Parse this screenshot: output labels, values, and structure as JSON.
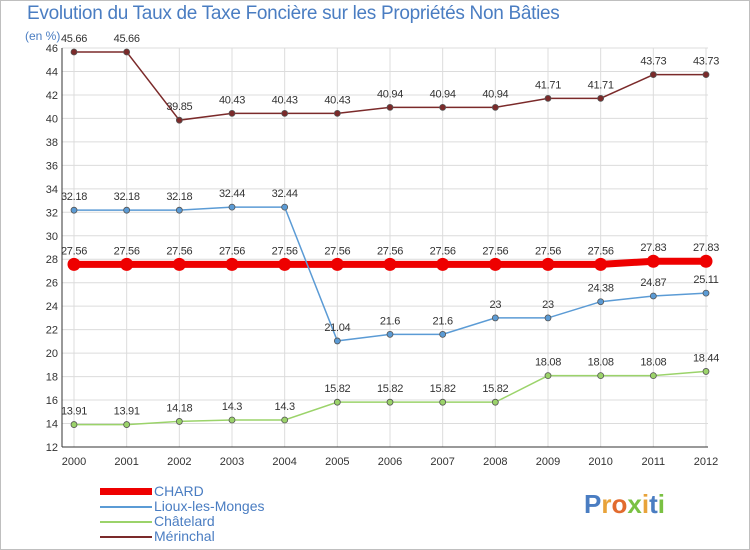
{
  "chart_data": {
    "type": "line",
    "title": "Evolution du Taux de Taxe Foncière sur les Propriétés Non Bâties",
    "ylabel": "(en %)",
    "xlabel": "",
    "x": [
      "2000",
      "2001",
      "2002",
      "2003",
      "2004",
      "2005",
      "2006",
      "2007",
      "2008",
      "2009",
      "2010",
      "2011",
      "2012"
    ],
    "ylim": [
      12,
      46
    ],
    "yticks": [
      12,
      14,
      16,
      18,
      20,
      22,
      24,
      26,
      28,
      30,
      32,
      34,
      36,
      38,
      40,
      42,
      44,
      46
    ],
    "grid": true,
    "legend_position": "bottom-left",
    "series": [
      {
        "name": "CHARD",
        "color": "#ee0000",
        "bold": true,
        "values": [
          27.56,
          27.56,
          27.56,
          27.56,
          27.56,
          27.56,
          27.56,
          27.56,
          27.56,
          27.56,
          27.56,
          27.83,
          27.83
        ],
        "labels": [
          "27.56",
          "27.56",
          "27.56",
          "27.56",
          "27.56",
          "27.56",
          "27.56",
          "27.56",
          "27.56",
          "27.56",
          "27.56",
          "27.83",
          "27.83"
        ]
      },
      {
        "name": "Lioux-les-Monges",
        "color": "#5b9bd5",
        "bold": false,
        "values": [
          32.18,
          32.18,
          32.18,
          32.44,
          32.44,
          21.04,
          21.6,
          21.6,
          23,
          23,
          24.38,
          24.87,
          25.11
        ],
        "labels": [
          "32.18",
          "32.18",
          "32.18",
          "32.44",
          "32.44",
          "21.04",
          "21.6",
          "21.6",
          "23",
          "23",
          "24.38",
          "24.87",
          "25.11"
        ]
      },
      {
        "name": "Châtelard",
        "color": "#9bd36a",
        "bold": false,
        "values": [
          13.91,
          13.91,
          14.18,
          14.3,
          14.3,
          15.82,
          15.82,
          15.82,
          15.82,
          18.08,
          18.08,
          18.08,
          18.44
        ],
        "labels": [
          "13.91",
          "13.91",
          "14.18",
          "14.3",
          "14.3",
          "15.82",
          "15.82",
          "15.82",
          "15.82",
          "18.08",
          "18.08",
          "18.08",
          "18.44"
        ]
      },
      {
        "name": "Mérinchal",
        "color": "#7b2a2a",
        "bold": false,
        "values": [
          45.66,
          45.66,
          39.85,
          40.43,
          40.43,
          40.43,
          40.94,
          40.94,
          40.94,
          41.71,
          41.71,
          43.73,
          43.73
        ],
        "labels": [
          "45.66",
          "45.66",
          "39.85",
          "40.43",
          "40.43",
          "40.43",
          "40.94",
          "40.94",
          "40.94",
          "41.71",
          "41.71",
          "43.73",
          "43.73"
        ]
      }
    ]
  },
  "logo": {
    "text": "Proxiti"
  }
}
